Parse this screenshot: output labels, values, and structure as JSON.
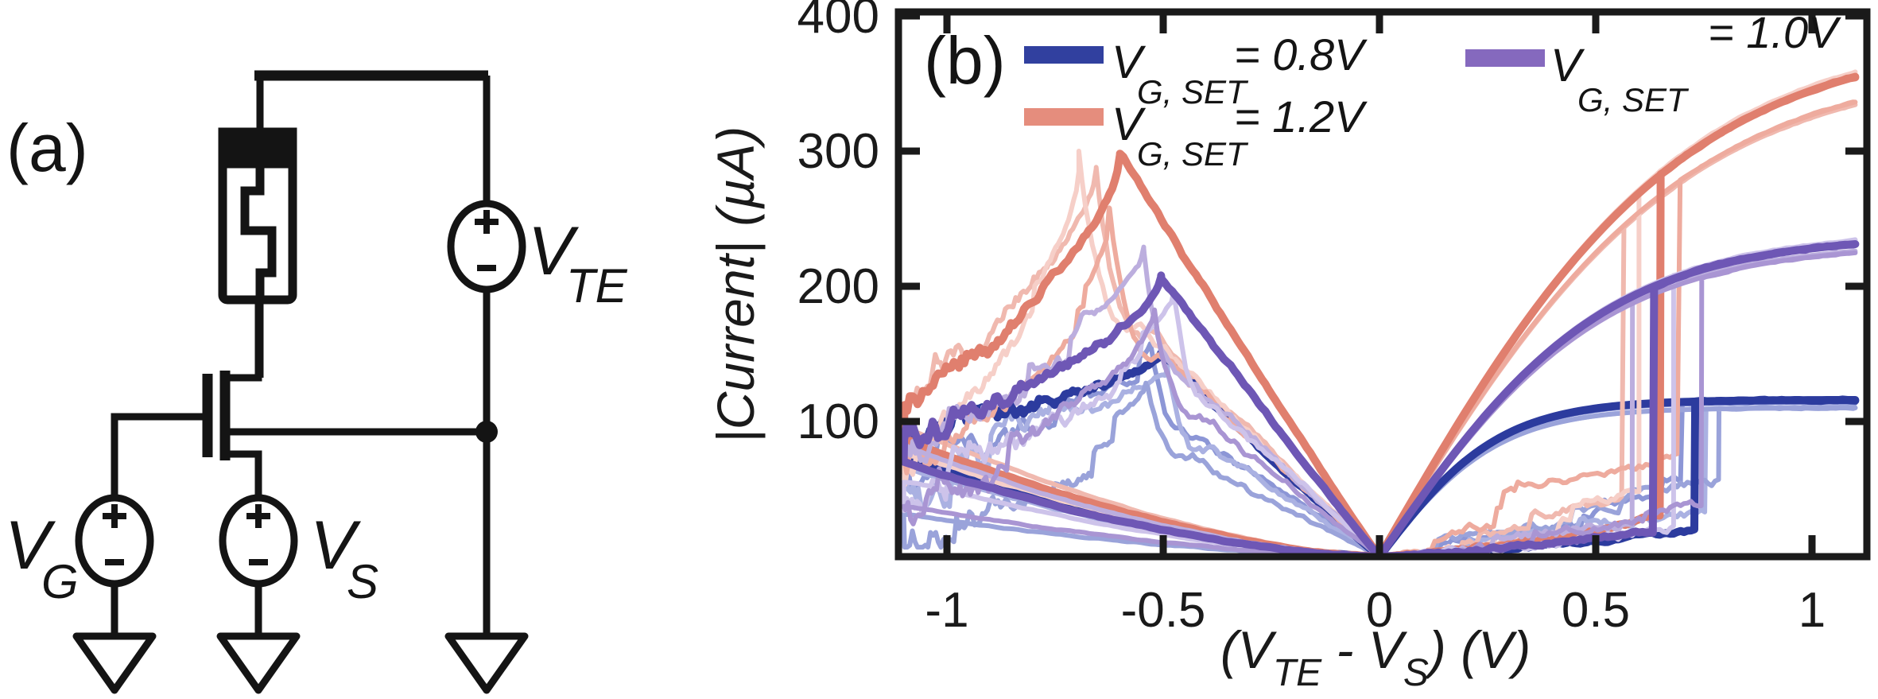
{
  "panel_a": {
    "label": "(a)",
    "description": "1T1R circuit schematic: memristor in series with transistor drain; gate driven by VG, source by VS, top electrode by VTE; all sources grounded",
    "labels": {
      "vte": {
        "main": "V",
        "sub": "TE"
      },
      "vg": {
        "main": "V",
        "sub": "G"
      },
      "vs": {
        "main": "V",
        "sub": "S"
      }
    }
  },
  "panel_b": {
    "label": "(b)"
  },
  "chart_data": {
    "type": "line",
    "title": "",
    "ylabel": "|Current| (µA)",
    "xlabel_parts": [
      {
        "s": "(V"
      },
      {
        "s": "TE",
        "sub": true
      },
      {
        "s": " - V"
      },
      {
        "s": "S",
        "sub": true
      },
      {
        "s": ") (V)"
      }
    ],
    "xlim": [
      -1.112,
      1.127
    ],
    "ylim": [
      0,
      403
    ],
    "x_tick_values": [
      -1,
      -0.5,
      0,
      0.5,
      1
    ],
    "x_tick_labels": [
      "-1",
      "-0.5",
      "0",
      "0.5",
      "1"
    ],
    "y_tick_values": [
      100,
      200,
      300,
      400
    ],
    "y_tick_labels": [
      "100",
      "200",
      "300",
      "400"
    ],
    "grid": false,
    "legend_position": "top-inside",
    "legend": [
      {
        "main": "V",
        "sub": "G, SET",
        "eq": "= 0.8V",
        "color": "#31409f"
      },
      {
        "main": "V",
        "sub": "G, SET",
        "eq": "= 1.0V",
        "color": "#8569be"
      },
      {
        "main": "V",
        "sub": "G, SET",
        "eq": "= 1.2V",
        "color": "#e58d7d"
      }
    ],
    "sweep_range_V": [
      -1.1,
      1.1
    ],
    "series": [
      {
        "name": "VG,SET = 0.8V",
        "gate_voltage_V": 0.8,
        "color_dark": "#2c3b9e",
        "colors_light": [
          "#8c96d6",
          "#aab1e2",
          "#9aa3da"
        ],
        "high_branch": {
          "type": "tanh",
          "amp": 116,
          "scale": 0.28
        },
        "low_branch": {
          "a": 18,
          "b": 14
        },
        "return_branch": {
          "end_factor": 0.82,
          "exp": 1.6
        },
        "dark": {
          "v_set": 0.73,
          "v_reset": -0.505,
          "peak": 150,
          "end_neg": 93
        },
        "cycles": [
          {
            "v_set": 0.7,
            "v_reset": -0.53,
            "peak": 157,
            "end_neg": 103
          },
          {
            "v_set": 0.755,
            "v_reset": -0.49,
            "peak": 140,
            "end_neg": 80
          },
          {
            "v_set": 0.785,
            "v_reset": -0.54,
            "peak": 127,
            "end_neg": 38
          }
        ],
        "current_at_plus_1p1V_uA": 115
      },
      {
        "name": "VG,SET = 1.2V",
        "gate_voltage_V": 1.2,
        "color_dark": "#e07f6e",
        "colors_light": [
          "#f0b9af",
          "#f6cfc8",
          "#eeab9e"
        ],
        "high_branch": {
          "type": "tanh",
          "amp": 387,
          "scale": 0.7
        },
        "low_branch": {
          "a": 40,
          "b": 20
        },
        "return_branch": {
          "end_factor": 0.82,
          "exp": 1.55
        },
        "dark": {
          "v_set": 0.65,
          "v_reset": -0.6,
          "peak": 298,
          "end_neg": 106
        },
        "cycles": [
          {
            "v_set": 0.565,
            "v_reset": -0.655,
            "peak": 288,
            "end_neg": 118
          },
          {
            "v_set": 0.6,
            "v_reset": -0.695,
            "peak": 300,
            "end_neg": 95
          },
          {
            "v_set": 0.695,
            "v_reset": -0.625,
            "peak": 258,
            "end_neg": 85
          }
        ],
        "current_at_plus_1p1V_uA": 355
      },
      {
        "name": "VG,SET = 1.0V",
        "gate_voltage_V": 1.0,
        "color_dark": "#6e57b5",
        "colors_light": [
          "#bcaede",
          "#cdc3ea",
          "#a995d3"
        ],
        "high_branch": {
          "type": "tanh",
          "amp": 238,
          "scale": 0.52
        },
        "low_branch": {
          "a": 22,
          "b": 16
        },
        "return_branch": {
          "end_factor": 0.82,
          "exp": 1.6
        },
        "dark": {
          "v_set": 0.635,
          "v_reset": -0.505,
          "peak": 208,
          "end_neg": 85
        },
        "cycles": [
          {
            "v_set": 0.585,
            "v_reset": -0.545,
            "peak": 228,
            "end_neg": 100
          },
          {
            "v_set": 0.68,
            "v_reset": -0.475,
            "peak": 196,
            "end_neg": 70
          },
          {
            "v_set": 0.745,
            "v_reset": -0.52,
            "peak": 182,
            "end_neg": 46
          }
        ],
        "current_at_plus_1p1V_uA": 230
      }
    ]
  }
}
